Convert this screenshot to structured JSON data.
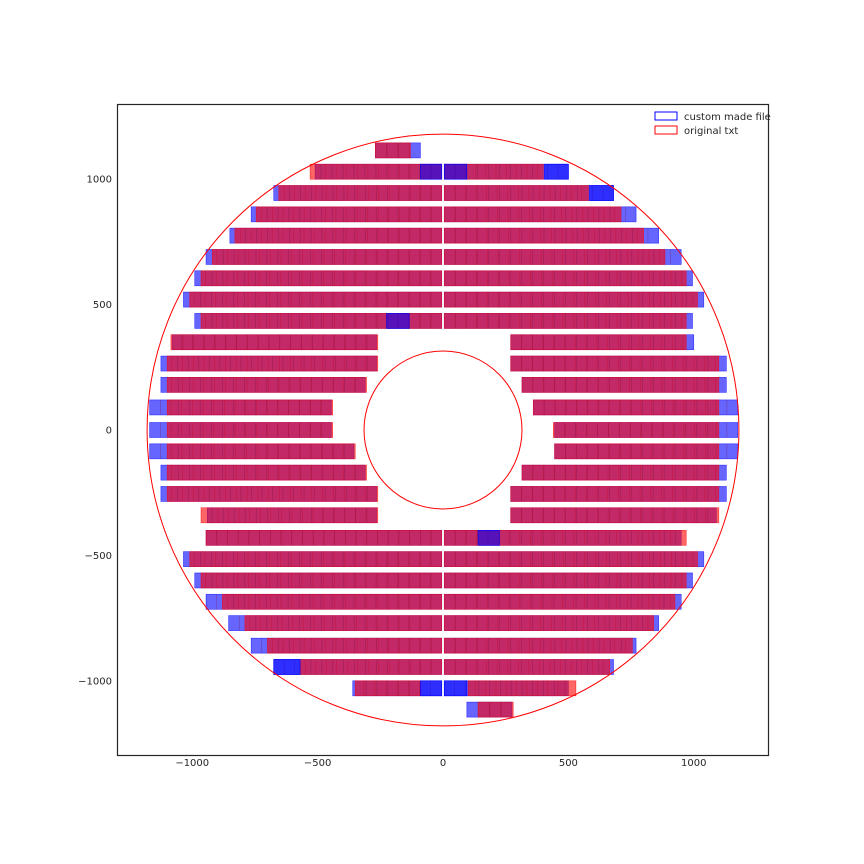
{
  "chart_data": {
    "type": "layout-rectangles",
    "xlim": [
      -1300,
      1300
    ],
    "ylim": [
      -1300,
      1300
    ],
    "xticks": [
      -1000,
      -500,
      0,
      500,
      1000
    ],
    "yticks": [
      -1000,
      -500,
      0,
      500,
      1000
    ],
    "xtick_labels": [
      "−1000",
      "−500",
      "0",
      "500",
      "1000"
    ],
    "ytick_labels": [
      "−1000",
      "−500",
      "0",
      "500",
      "1000"
    ],
    "grid": false,
    "legend_position": "upper-right",
    "series": [
      {
        "name": "custom made file",
        "color": "#0000ff",
        "rows": [
          {
            "y": 1115,
            "left": [
              -270,
              -90
            ],
            "right": null
          },
          {
            "y": 1030,
            "left": [
              -510,
              -5
            ],
            "right": [
              5,
              500
            ]
          },
          {
            "y": 945,
            "left": [
              -675,
              -5
            ],
            "right": [
              5,
              680
            ]
          },
          {
            "y": 860,
            "left": [
              -765,
              -5
            ],
            "right": [
              5,
              770
            ]
          },
          {
            "y": 775,
            "left": [
              -850,
              -5
            ],
            "right": [
              5,
              860
            ]
          },
          {
            "y": 690,
            "left": [
              -945,
              -5
            ],
            "right": [
              5,
              950
            ]
          },
          {
            "y": 605,
            "left": [
              -990,
              -5
            ],
            "right": [
              5,
              995
            ]
          },
          {
            "y": 520,
            "left": [
              -1035,
              -5
            ],
            "right": [
              5,
              1040
            ]
          },
          {
            "y": 435,
            "left": [
              -990,
              -5
            ],
            "right": [
              5,
              995
            ]
          },
          {
            "y": 350,
            "left": [
              -1080,
              -265
            ],
            "right": [
              270,
              1000
            ]
          },
          {
            "y": 265,
            "left": [
              -1125,
              -265
            ],
            "right": [
              270,
              1130
            ]
          },
          {
            "y": 180,
            "left": [
              -1125,
              -310
            ],
            "right": [
              315,
              1130
            ]
          },
          {
            "y": 90,
            "left": [
              -1170,
              -445
            ],
            "right": [
              360,
              1175
            ]
          },
          {
            "y": 0,
            "left": [
              -1170,
              -445
            ],
            "right": [
              445,
              1175
            ]
          },
          {
            "y": -85,
            "left": [
              -1170,
              -355
            ],
            "right": [
              445,
              1175
            ]
          },
          {
            "y": -170,
            "left": [
              -1125,
              -310
            ],
            "right": [
              315,
              1130
            ]
          },
          {
            "y": -255,
            "left": [
              -1125,
              -265
            ],
            "right": [
              270,
              1130
            ]
          },
          {
            "y": -340,
            "left": [
              -940,
              -265
            ],
            "right": [
              270,
              1090
            ]
          },
          {
            "y": -430,
            "left": [
              -945,
              -5
            ],
            "right": [
              5,
              950
            ]
          },
          {
            "y": -515,
            "left": [
              -1035,
              -5
            ],
            "right": [
              5,
              1040
            ]
          },
          {
            "y": -600,
            "left": [
              -990,
              -5
            ],
            "right": [
              5,
              995
            ]
          },
          {
            "y": -685,
            "left": [
              -945,
              -5
            ],
            "right": [
              5,
              950
            ]
          },
          {
            "y": -770,
            "left": [
              -855,
              -5
            ],
            "right": [
              5,
              860
            ]
          },
          {
            "y": -860,
            "left": [
              -765,
              -5
            ],
            "right": [
              5,
              770
            ]
          },
          {
            "y": -945,
            "left": [
              -675,
              -5
            ],
            "right": [
              5,
              680
            ]
          },
          {
            "y": -1030,
            "left": [
              -360,
              -5
            ],
            "right": [
              5,
              500
            ]
          },
          {
            "y": -1115,
            "left": null,
            "right": [
              95,
              275
            ]
          }
        ]
      },
      {
        "name": "original txt",
        "color": "#ff0000",
        "rows": [
          {
            "y": 1115,
            "left": [
              -270,
              -130
            ],
            "right": null
          },
          {
            "y": 1030,
            "left": [
              -530,
              -5
            ],
            "right": [
              5,
              400
            ]
          },
          {
            "y": 945,
            "left": [
              -655,
              -5
            ],
            "right": [
              5,
              580
            ]
          },
          {
            "y": 860,
            "left": [
              -745,
              -5
            ],
            "right": [
              5,
              710
            ]
          },
          {
            "y": 775,
            "left": [
              -830,
              -5
            ],
            "right": [
              5,
              800
            ]
          },
          {
            "y": 690,
            "left": [
              -920,
              -5
            ],
            "right": [
              5,
              885
            ]
          },
          {
            "y": 605,
            "left": [
              -965,
              -5
            ],
            "right": [
              5,
              970
            ]
          },
          {
            "y": 520,
            "left": [
              -1010,
              -5
            ],
            "right": [
              5,
              1015
            ]
          },
          {
            "y": 435,
            "left": [
              -965,
              -5
            ],
            "right": [
              5,
              970
            ]
          },
          {
            "y": 350,
            "left": [
              -1085,
              -260
            ],
            "right": [
              270,
              970
            ]
          },
          {
            "y": 265,
            "left": [
              -1100,
              -260
            ],
            "right": [
              270,
              1100
            ]
          },
          {
            "y": 180,
            "left": [
              -1100,
              -305
            ],
            "right": [
              315,
              1100
            ]
          },
          {
            "y": 90,
            "left": [
              -1100,
              -440
            ],
            "right": [
              360,
              1100
            ]
          },
          {
            "y": 0,
            "left": [
              -1100,
              -440
            ],
            "right": [
              440,
              1100
            ]
          },
          {
            "y": -85,
            "left": [
              -1100,
              -350
            ],
            "right": [
              445,
              1100
            ]
          },
          {
            "y": -170,
            "left": [
              -1100,
              -305
            ],
            "right": [
              315,
              1100
            ]
          },
          {
            "y": -255,
            "left": [
              -1100,
              -260
            ],
            "right": [
              270,
              1100
            ]
          },
          {
            "y": -340,
            "left": [
              -965,
              -260
            ],
            "right": [
              270,
              1100
            ]
          },
          {
            "y": -430,
            "left": [
              -945,
              -5
            ],
            "right": [
              5,
              970
            ]
          },
          {
            "y": -515,
            "left": [
              -1010,
              -5
            ],
            "right": [
              5,
              1015
            ]
          },
          {
            "y": -600,
            "left": [
              -965,
              -5
            ],
            "right": [
              5,
              970
            ]
          },
          {
            "y": -685,
            "left": [
              -880,
              -5
            ],
            "right": [
              5,
              925
            ]
          },
          {
            "y": -770,
            "left": [
              -790,
              -5
            ],
            "right": [
              5,
              840
            ]
          },
          {
            "y": -860,
            "left": [
              -700,
              -5
            ],
            "right": [
              5,
              755
            ]
          },
          {
            "y": -945,
            "left": [
              -570,
              -5
            ],
            "right": [
              5,
              665
            ]
          },
          {
            "y": -1030,
            "left": [
              -350,
              -90
            ],
            "right": [
              100,
              530
            ]
          },
          {
            "y": -1115,
            "left": null,
            "right": [
              140,
              280
            ]
          }
        ]
      }
    ],
    "rect_height": 60,
    "cell_width": 43,
    "overlays": {
      "blue_extra_cells": [
        {
          "y": 1030,
          "x": [
            -90,
            -5
          ]
        },
        {
          "y": 1030,
          "x": [
            5,
            95
          ]
        },
        {
          "y": 1030,
          "x": [
            405,
            500
          ]
        },
        {
          "y": 945,
          "x": [
            585,
            680
          ]
        },
        {
          "y": 435,
          "x": [
            -225,
            -135
          ]
        },
        {
          "y": -430,
          "x": [
            140,
            225
          ]
        },
        {
          "y": -945,
          "x": [
            -675,
            -570
          ]
        },
        {
          "y": -1030,
          "x": [
            -90,
            -5
          ]
        },
        {
          "y": -1030,
          "x": [
            5,
            95
          ]
        }
      ]
    },
    "circles": [
      {
        "name": "outer-circle",
        "cx": 0,
        "cy": 0,
        "r": 1180,
        "color": "#ff0000"
      },
      {
        "name": "inner-circle",
        "cx": 0,
        "cy": 0,
        "r": 315,
        "color": "#ff0000"
      }
    ],
    "colors": {
      "blue_fill": "#0000ff",
      "red_fill": "#ff0000",
      "overlap_look": "#c0185a",
      "axes_edge": "#262626"
    }
  }
}
